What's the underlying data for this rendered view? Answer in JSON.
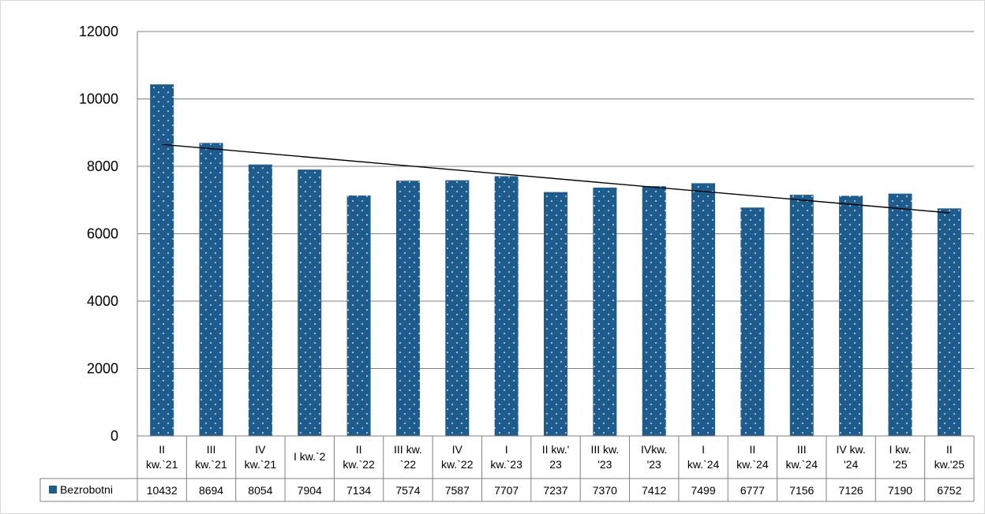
{
  "chart_data": {
    "type": "bar",
    "categories": [
      [
        "II",
        "kw.`21"
      ],
      [
        "III",
        "kw.`21"
      ],
      [
        "IV",
        "kw.`21"
      ],
      [
        "I kw.`2"
      ],
      [
        "II",
        "kw.`22"
      ],
      [
        "III kw.",
        "`22"
      ],
      [
        "IV",
        "kw.`22"
      ],
      [
        "I",
        "kw.`23"
      ],
      [
        "II kw.'",
        "23"
      ],
      [
        "III kw.",
        "'23"
      ],
      [
        "IVkw.",
        "'23"
      ],
      [
        "I",
        "kw.`24"
      ],
      [
        "II",
        "kw.`24"
      ],
      [
        "III",
        "kw.`24"
      ],
      [
        "IV kw.",
        "'24"
      ],
      [
        "I kw.",
        "'25"
      ],
      [
        "II",
        "kw.'25"
      ]
    ],
    "series": [
      {
        "name": "Bezrobotni",
        "color": "#1F5C8E",
        "values": [
          10432,
          8694,
          8054,
          7904,
          7134,
          7574,
          7587,
          7707,
          7237,
          7370,
          7412,
          7499,
          6777,
          7156,
          7126,
          7190,
          6752
        ]
      }
    ],
    "data_table_values": [
      "10432",
      "8694",
      "8054",
      "7904",
      "7134",
      "7574",
      "7587",
      "7707",
      "7237",
      "7370",
      "7412",
      "7499",
      "6777",
      "7156",
      "7126",
      "7190",
      "6752"
    ],
    "y_ticks": [
      "0",
      "2000",
      "4000",
      "6000",
      "8000",
      "10000",
      "12000"
    ],
    "ylim": [
      0,
      12000
    ],
    "trendline": {
      "type": "linear",
      "start_value": 8650,
      "end_value": 6620,
      "color": "#000000"
    },
    "gridlines": true,
    "legend": "in data table",
    "pattern": "dotted fill"
  }
}
